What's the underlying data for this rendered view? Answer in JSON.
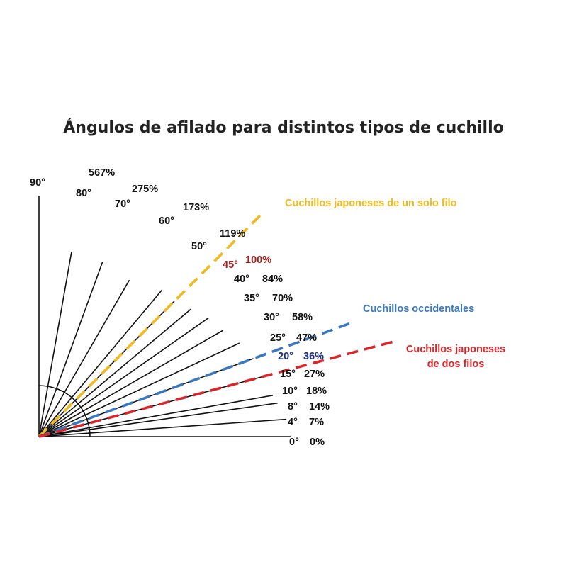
{
  "title": "Ángulos de afilado para distintos tipos de cuchillo",
  "colors": {
    "single_bevel": "#f2b81c",
    "western": "#3a78c0",
    "double_bevel": "#d9262a",
    "ray": "#111111",
    "highlight_45": "#a61d1d",
    "highlight_20": "#1a2d8c"
  },
  "rays": [
    {
      "angle": 0,
      "angle_label": "0°",
      "percent_label": "0%"
    },
    {
      "angle": 4,
      "angle_label": "4°",
      "percent_label": "7%"
    },
    {
      "angle": 8,
      "angle_label": "8°",
      "percent_label": "14%"
    },
    {
      "angle": 10,
      "angle_label": "10°",
      "percent_label": "18%"
    },
    {
      "angle": 15,
      "angle_label": "15°",
      "percent_label": "27%"
    },
    {
      "angle": 20,
      "angle_label": "20°",
      "percent_label": "36%",
      "highlight": "highlight_20"
    },
    {
      "angle": 25,
      "angle_label": "25°",
      "percent_label": "47%"
    },
    {
      "angle": 30,
      "angle_label": "30°",
      "percent_label": "58%"
    },
    {
      "angle": 35,
      "angle_label": "35°",
      "percent_label": "70%"
    },
    {
      "angle": 40,
      "angle_label": "40°",
      "percent_label": "84%"
    },
    {
      "angle": 45,
      "angle_label": "45°",
      "percent_label": "100%",
      "highlight": "highlight_45"
    },
    {
      "angle": 50,
      "angle_label": "50°",
      "percent_label": "119%"
    },
    {
      "angle": 60,
      "angle_label": "60°",
      "percent_label": "173%"
    },
    {
      "angle": 70,
      "angle_label": "70°",
      "percent_label": "275%"
    },
    {
      "angle": 80,
      "angle_label": "80°",
      "percent_label": "567%"
    },
    {
      "angle": 90,
      "angle_label": "90°",
      "percent_label": ""
    }
  ],
  "dashed_lines": [
    {
      "id": "single-bevel",
      "angle": 45,
      "color_key": "single_bevel",
      "label_lines": [
        "Cuchillos japoneses de un solo filo"
      ]
    },
    {
      "id": "western",
      "angle": 20,
      "color_key": "western",
      "label_lines": [
        "Cuchillos occidentales"
      ]
    },
    {
      "id": "double-bevel",
      "angle": 15,
      "color_key": "double_bevel",
      "label_lines": [
        "Cuchillos japoneses",
        "de dos filos"
      ]
    }
  ]
}
